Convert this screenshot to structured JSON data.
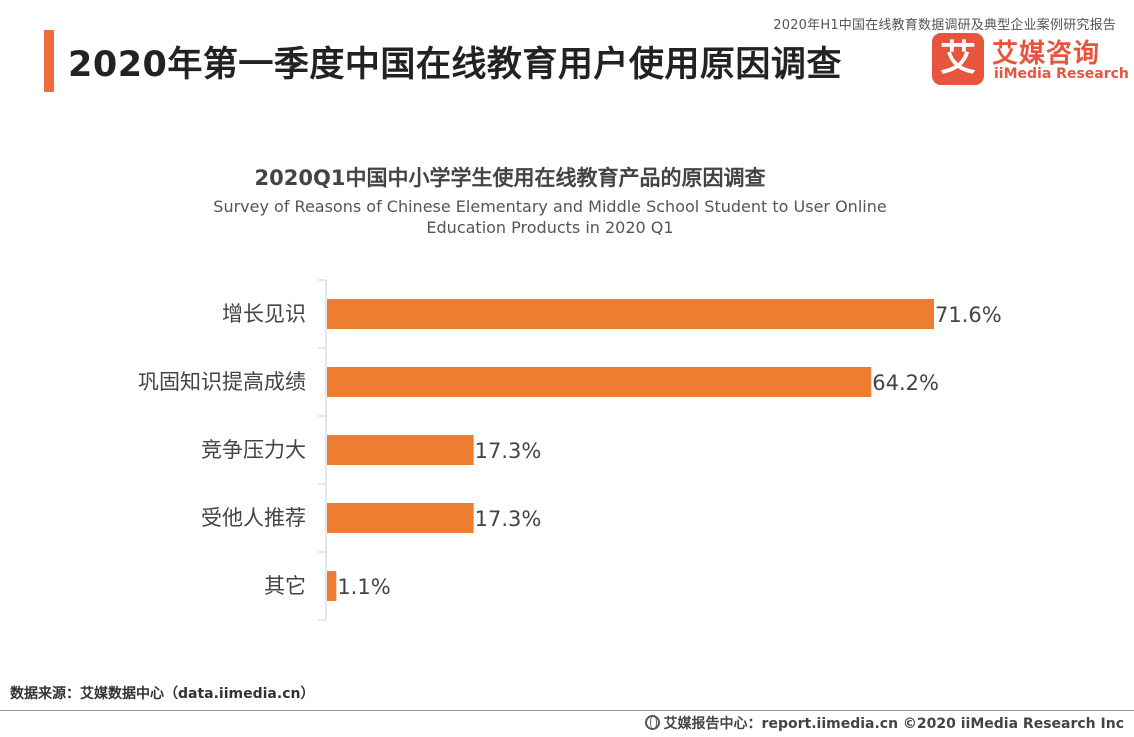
{
  "report_title": "2020年H1中国在线教育数据调研及典型企业案例研究报告",
  "page_title": "2020年第一季度中国在线教育用户使用原因调查",
  "logo": {
    "mark": "艾",
    "cn": "艾媒咨询",
    "en": "iiMedia Research"
  },
  "colors": {
    "accent": "#ED6D3D",
    "bar": "#ED7D31",
    "brand": "#E8553E"
  },
  "chart_data": {
    "type": "bar",
    "orientation": "horizontal",
    "title": "2020Q1中国中小学学生使用在线教育产品的原因调查",
    "subtitle_lines": [
      "Survey of Reasons of Chinese Elementary and Middle School Student to User Online",
      "Education Products in 2020 Q1"
    ],
    "categories": [
      "增长见识",
      "巩固知识提高成绩",
      "竞争压力大",
      "受他人推荐",
      "其它"
    ],
    "values": [
      71.6,
      64.2,
      17.3,
      17.3,
      1.1
    ],
    "data_labels": [
      "71.6%",
      "64.2%",
      "17.3%",
      "17.3%",
      "1.1%"
    ],
    "xlim": [
      0,
      71.6
    ],
    "grid": false,
    "legend": "none"
  },
  "source": "数据来源：艾媒数据中心（data.iimedia.cn）",
  "footer": "艾媒报告中心：report.iimedia.cn  ©2020  iiMedia Research  Inc"
}
